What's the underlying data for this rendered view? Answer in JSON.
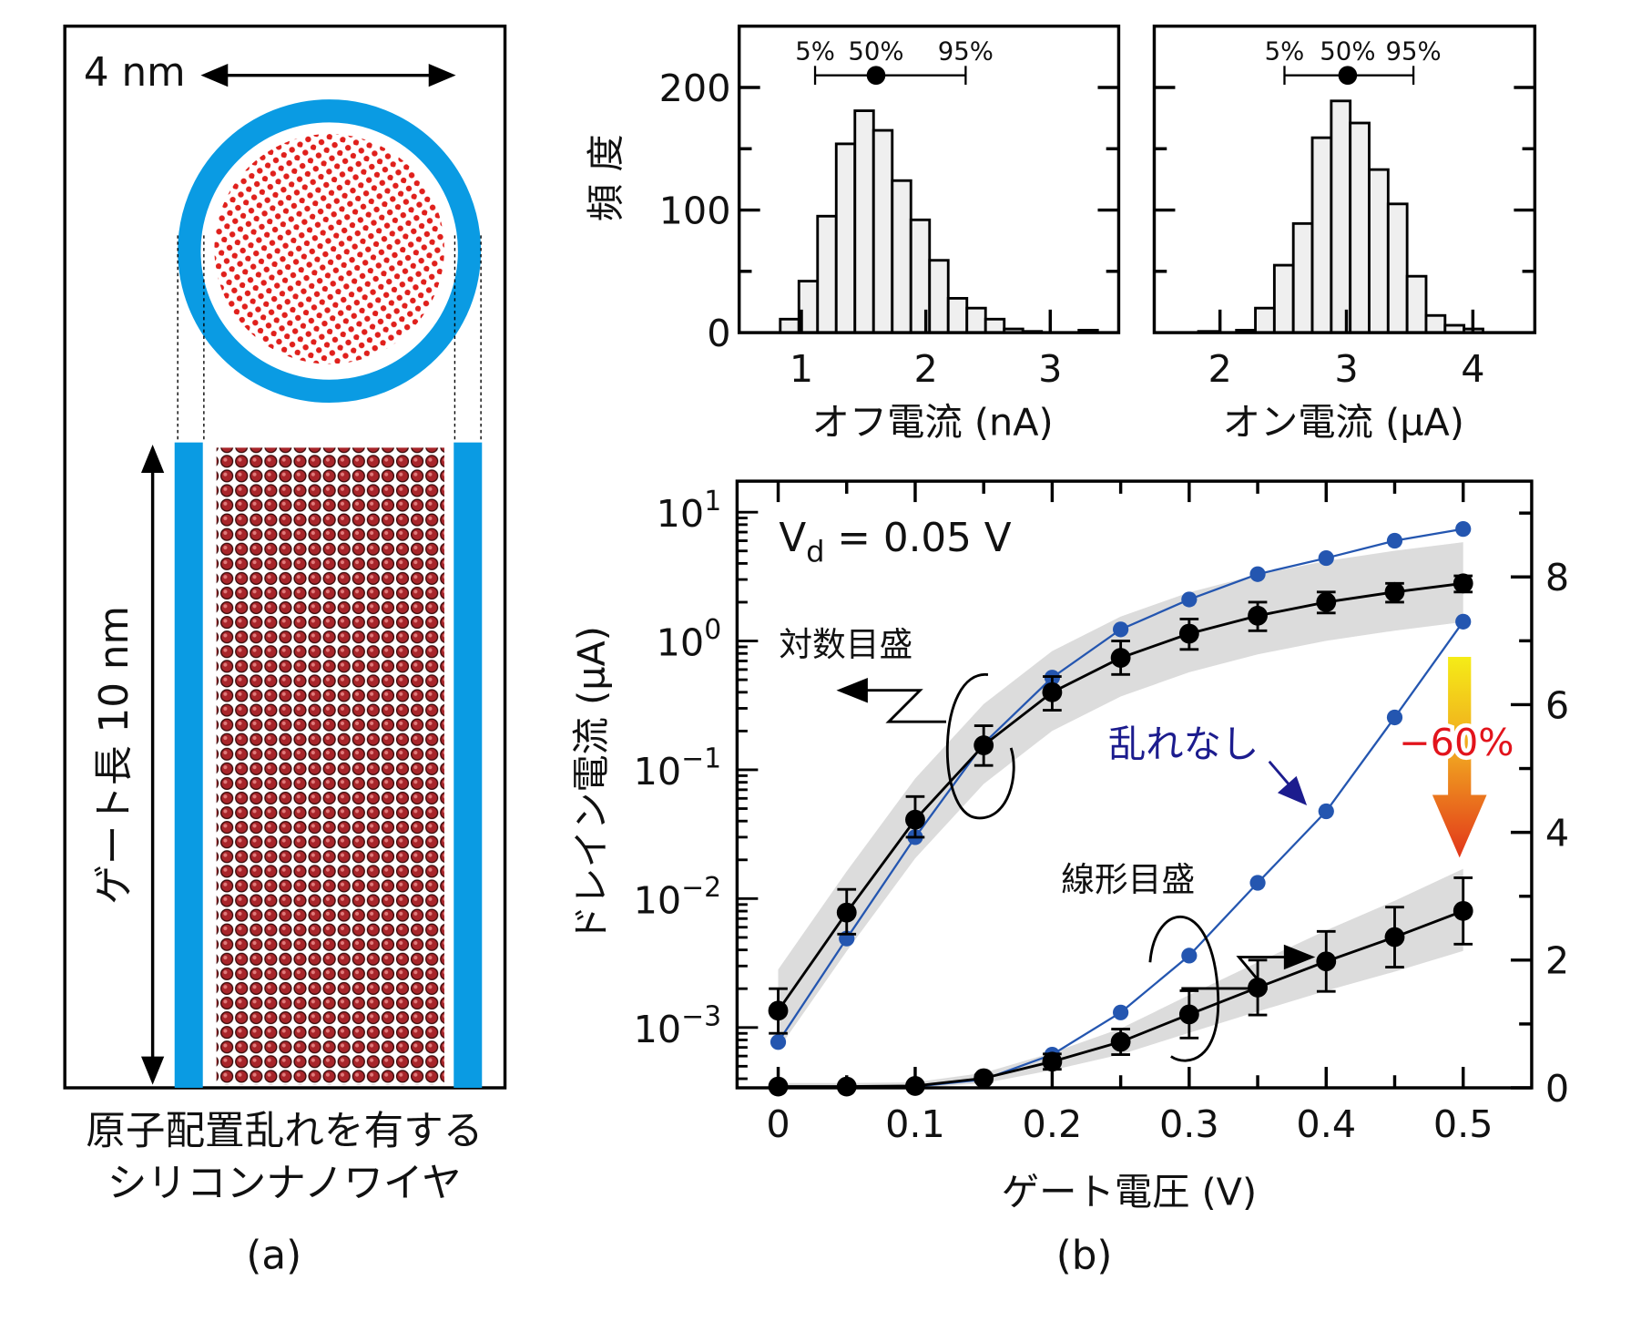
{
  "panel_a": {
    "width_label": "4 nm",
    "gate_length_label": "ゲート長 10 nm",
    "caption_line1": "原子配置乱れを有する",
    "caption_line2": "シリコンナノワイヤ",
    "panel_label": "(a)",
    "colors": {
      "oxide": "#0a9be3",
      "atom_cross_section": "#e0201c",
      "atom_lattice": "#a8252a"
    }
  },
  "panel_b": {
    "panel_label": "(b)"
  },
  "chart_data": [
    {
      "type": "bar",
      "subtype": "histogram",
      "xlabel": "オフ電流 (nA)",
      "ylabel": "頻 度",
      "bin_start": 0.83,
      "bin_width": 0.15,
      "counts": [
        11,
        42,
        95,
        154,
        181,
        165,
        124,
        92,
        59,
        28,
        20,
        11,
        3,
        1,
        0,
        0,
        2
      ],
      "xlim": [
        0.5,
        3.55
      ],
      "ylim": [
        0,
        250
      ],
      "xticks": [
        "1",
        "2",
        "3"
      ],
      "yticks": [
        "0",
        "100",
        "200"
      ],
      "percentiles": {
        "labels": [
          "5%",
          "50%",
          "95%"
        ],
        "values": [
          1.11,
          1.6,
          2.32
        ]
      },
      "bar_color": "#efefef"
    },
    {
      "type": "bar",
      "subtype": "histogram",
      "xlabel": "オン電流 (μA)",
      "bin_start": 1.83,
      "bin_width": 0.15,
      "counts": [
        1,
        0,
        2,
        20,
        55,
        89,
        159,
        189,
        171,
        133,
        105,
        46,
        14,
        6,
        3
      ],
      "xlim": [
        1.48,
        4.49
      ],
      "ylim": [
        0,
        250
      ],
      "xticks": [
        "2",
        "3",
        "4"
      ],
      "percentiles": {
        "labels": [
          "5%",
          "50%",
          "95%"
        ],
        "values": [
          2.51,
          3.01,
          3.53
        ]
      },
      "bar_color": "#efefef"
    },
    {
      "type": "line",
      "xlabel": "ゲート電圧 (V)",
      "ylabel": "ドレイン電流 (μA)",
      "x": [
        0,
        0.05,
        0.1,
        0.15,
        0.2,
        0.25,
        0.3,
        0.35,
        0.4,
        0.45,
        0.5
      ],
      "xlim": [
        -0.03,
        0.55
      ],
      "xticks": [
        "0",
        "0.1",
        "0.2",
        "0.3",
        "0.4",
        "0.5"
      ],
      "y_left": {
        "scale": "log",
        "ylim": [
          0.00034,
          17.4
        ],
        "ticks": [
          {
            "base": "10",
            "exp": "1"
          },
          {
            "base": "10",
            "exp": "0"
          },
          {
            "base": "10",
            "exp": "−1"
          },
          {
            "base": "10",
            "exp": "−2"
          },
          {
            "base": "10",
            "exp": "−3"
          }
        ]
      },
      "y_right": {
        "scale": "linear",
        "ylim": [
          0,
          9.5
        ],
        "ticks": [
          "0",
          "2",
          "4",
          "6",
          "8"
        ]
      },
      "series": [
        {
          "axis": "log",
          "color": "#2456b0",
          "values": [
            0.00077,
            0.0049,
            0.03,
            0.16,
            0.52,
            1.23,
            2.1,
            3.3,
            4.4,
            6.0,
            7.4
          ]
        },
        {
          "axis": "log",
          "color": "#000000",
          "values": [
            0.00135,
            0.0078,
            0.041,
            0.155,
            0.4,
            0.74,
            1.14,
            1.57,
            2.0,
            2.4,
            2.8
          ],
          "err_low": [
            0.0009,
            0.0053,
            0.03,
            0.108,
            0.29,
            0.55,
            0.86,
            1.2,
            1.65,
            2.0,
            2.4
          ],
          "err_high": [
            0.002,
            0.0118,
            0.062,
            0.22,
            0.53,
            1.0,
            1.48,
            2.0,
            2.4,
            2.8,
            3.2
          ]
        },
        {
          "axis": "linear",
          "color": "#2456b0",
          "values": [
            0,
            0,
            0.02,
            0.13,
            0.52,
            1.18,
            2.07,
            3.21,
            4.33,
            5.8,
            7.3
          ]
        },
        {
          "axis": "linear",
          "color": "#000000",
          "values": [
            0.02,
            0.02,
            0.03,
            0.15,
            0.41,
            0.72,
            1.15,
            1.57,
            1.98,
            2.36,
            2.77
          ],
          "err": [
            0,
            0,
            0,
            0.05,
            0.12,
            0.2,
            0.37,
            0.43,
            0.47,
            0.47,
            0.52
          ]
        }
      ],
      "band_color": "#dcdcdc",
      "annotations": {
        "vd": {
          "main": "V",
          "sub": "d",
          "rest": " = 0.05 V"
        },
        "log_scale": "対数目盛",
        "linear_scale": "線形目盛",
        "no_disorder": "乱れなし",
        "reduction": "−60%"
      },
      "colors": {
        "no_disorder_text": "#1c1c8e",
        "reduction_text": "#e2141c",
        "arrow_top": "#f5ec17",
        "arrow_bottom": "#e2361a"
      }
    }
  ]
}
